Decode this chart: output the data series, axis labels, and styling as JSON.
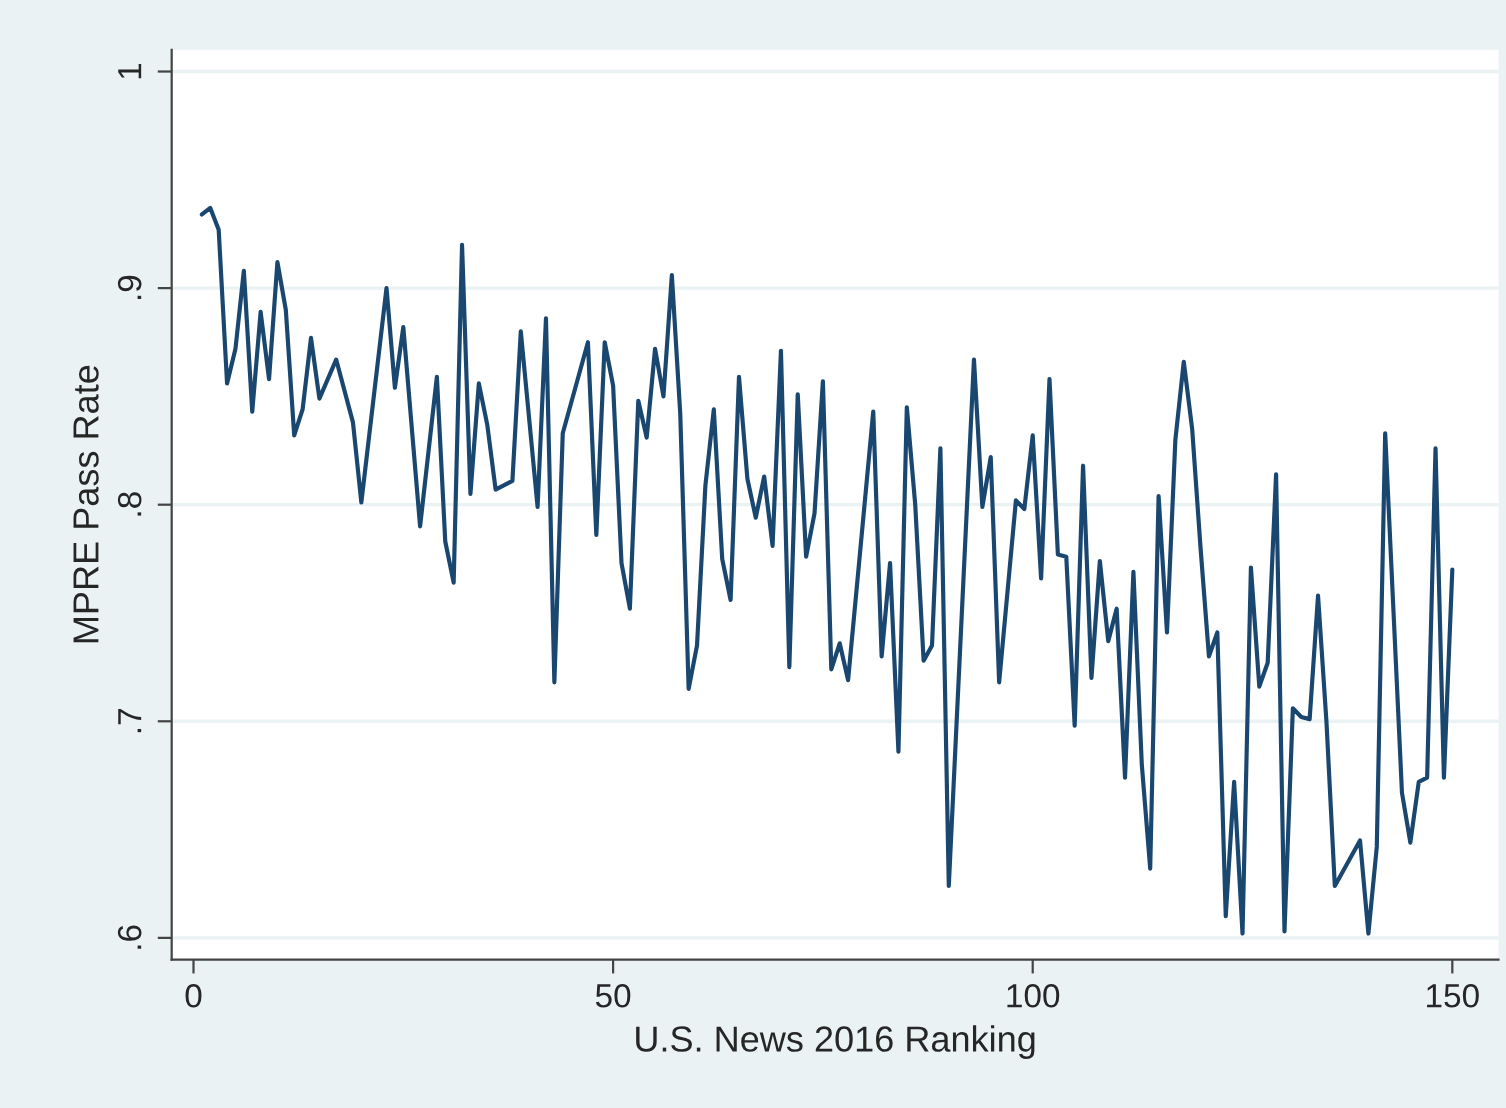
{
  "chart_data": {
    "type": "line",
    "xlabel": "U.S. News 2016 Ranking",
    "ylabel": "MPRE Pass Rate",
    "x": [
      1,
      2,
      3,
      4,
      5,
      6,
      7,
      8,
      9,
      10,
      11,
      12,
      13,
      14,
      15,
      17,
      19,
      20,
      23,
      24,
      25,
      27,
      29,
      30,
      31,
      32,
      33,
      34,
      35,
      36,
      38,
      39,
      41,
      42,
      43,
      44,
      47,
      48,
      49,
      50,
      51,
      52,
      53,
      54,
      55,
      56,
      57,
      58,
      59,
      60,
      61,
      62,
      63,
      64,
      65,
      66,
      67,
      68,
      69,
      70,
      71,
      72,
      73,
      74,
      75,
      76,
      77,
      78,
      81,
      82,
      83,
      84,
      85,
      86,
      87,
      88,
      89,
      90,
      93,
      94,
      95,
      96,
      97,
      98,
      99,
      100,
      101,
      102,
      103,
      104,
      105,
      106,
      107,
      108,
      109,
      110,
      111,
      112,
      113,
      114,
      115,
      116,
      117,
      118,
      119,
      120,
      121,
      122,
      123,
      124,
      125,
      126,
      127,
      128,
      129,
      130,
      131,
      132,
      133,
      134,
      135,
      136,
      139,
      140,
      141,
      142,
      143,
      144,
      145,
      146,
      147,
      148,
      149,
      150
    ],
    "series": [
      {
        "color": "#1a476f",
        "values": [
          0.934,
          0.937,
          0.927,
          0.856,
          0.872,
          0.908,
          0.843,
          0.889,
          0.858,
          0.912,
          0.89,
          0.832,
          0.844,
          0.877,
          0.849,
          0.867,
          0.838,
          0.801,
          0.9,
          0.854,
          0.882,
          0.79,
          0.859,
          0.783,
          0.764,
          0.92,
          0.805,
          0.856,
          0.837,
          0.807,
          0.811,
          0.88,
          0.799,
          0.886,
          0.718,
          0.833,
          0.875,
          0.786,
          0.875,
          0.855,
          0.773,
          0.752,
          0.848,
          0.831,
          0.872,
          0.85,
          0.906,
          0.842,
          0.715,
          0.735,
          0.809,
          0.844,
          0.775,
          0.756,
          0.859,
          0.812,
          0.794,
          0.813,
          0.781,
          0.871,
          0.725,
          0.851,
          0.776,
          0.796,
          0.857,
          0.724,
          0.736,
          0.719,
          0.843,
          0.73,
          0.773,
          0.686,
          0.845,
          0.8,
          0.728,
          0.735,
          0.826,
          0.624,
          0.867,
          0.799,
          0.822,
          0.718,
          0.76,
          0.802,
          0.798,
          0.832,
          0.766,
          0.858,
          0.777,
          0.776,
          0.698,
          0.818,
          0.72,
          0.774,
          0.737,
          0.752,
          0.674,
          0.769,
          0.68,
          0.632,
          0.804,
          0.741,
          0.83,
          0.866,
          0.835,
          0.78,
          0.73,
          0.741,
          0.61,
          0.672,
          0.602,
          0.771,
          0.716,
          0.727,
          0.814,
          0.603,
          0.706,
          0.702,
          0.701,
          0.758,
          0.7,
          0.624,
          0.645,
          0.602,
          0.642,
          0.833,
          0.75,
          0.667,
          0.644,
          0.672,
          0.674,
          0.826,
          0.674,
          0.77
        ]
      }
    ],
    "xlim": [
      -2.6,
      155.5
    ],
    "ylim": [
      0.59,
      1.01
    ],
    "xticks": [
      0,
      50,
      100,
      150
    ],
    "yticks": [
      {
        "value": 0.6,
        "label": ".6"
      },
      {
        "value": 0.7,
        "label": ".7"
      },
      {
        "value": 0.8,
        "label": ".8"
      },
      {
        "value": 0.9,
        "label": ".9"
      },
      {
        "value": 1,
        "label": "1"
      }
    ],
    "grid": "y",
    "legend": false
  }
}
